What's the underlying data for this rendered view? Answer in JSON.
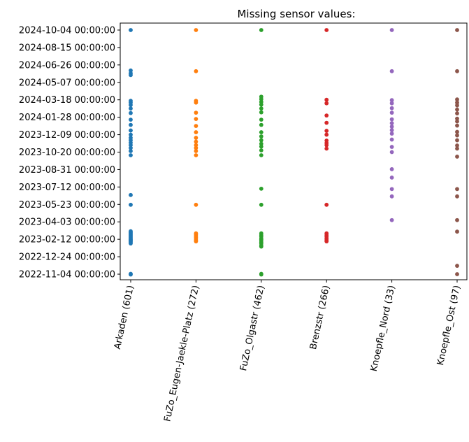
{
  "chart_data": {
    "type": "scatter",
    "title": "Missing sensor values:",
    "xlabel": "",
    "ylabel": "",
    "grid": false,
    "legend": "none",
    "categories": [
      "Arkaden (601)",
      "FuZo_Eugen-Jaekle-Platz (272)",
      "FuZo_Olgastr (462)",
      "Brenzstr (266)",
      "Knoepfle_Nord (33)",
      "Knoepfle_Ost (97)"
    ],
    "y_ticks": [
      "2022-11-04 00:00:00",
      "2022-12-24 00:00:00",
      "2023-02-12 00:00:00",
      "2023-04-03 00:00:00",
      "2023-05-23 00:00:00",
      "2023-07-12 00:00:00",
      "2023-08-31 00:00:00",
      "2023-10-20 00:00:00",
      "2023-12-09 00:00:00",
      "2024-01-28 00:00:00",
      "2024-03-18 00:00:00",
      "2024-05-07 00:00:00",
      "2024-06-26 00:00:00",
      "2024-08-15 00:00:00",
      "2024-10-04 00:00:00"
    ],
    "ylim": [
      "2022-10-19",
      "2024-10-24"
    ],
    "series": [
      {
        "color": "#1f77b4",
        "values": [
          "2022-11-03",
          "2022-11-05",
          "2023-01-31",
          "2023-02-03",
          "2023-02-06",
          "2023-02-08",
          "2023-02-10",
          "2023-02-12",
          "2023-02-14",
          "2023-02-17",
          "2023-02-20",
          "2023-02-23",
          "2023-02-26",
          "2023-03-01",
          "2023-03-04",
          "2023-03-07",
          "2023-05-22",
          "2023-06-19",
          "2023-10-11",
          "2023-10-23",
          "2023-11-01",
          "2023-11-09",
          "2023-11-16",
          "2023-11-23",
          "2023-11-30",
          "2023-12-09",
          "2023-12-21",
          "2024-01-06",
          "2024-01-21",
          "2024-02-09",
          "2024-02-22",
          "2024-03-03",
          "2024-03-10",
          "2024-03-15",
          "2024-05-28",
          "2024-06-02",
          "2024-06-10",
          "2024-10-04"
        ]
      },
      {
        "color": "#ff7f0e",
        "values": [
          "2023-02-06",
          "2023-02-09",
          "2023-02-13",
          "2023-02-18",
          "2023-02-22",
          "2023-02-26",
          "2023-03-01",
          "2023-05-22",
          "2023-10-11",
          "2023-10-23",
          "2023-11-01",
          "2023-11-09",
          "2023-11-19",
          "2023-11-30",
          "2023-12-16",
          "2024-01-03",
          "2024-01-23",
          "2024-02-10",
          "2024-03-10",
          "2024-03-15",
          "2024-06-08",
          "2024-10-04"
        ]
      },
      {
        "color": "#2ca02c",
        "values": [
          "2022-11-03",
          "2022-11-05",
          "2023-01-22",
          "2023-01-26",
          "2023-01-31",
          "2023-02-03",
          "2023-02-07",
          "2023-02-11",
          "2023-02-15",
          "2023-02-20",
          "2023-02-24",
          "2023-03-01",
          "2023-05-22",
          "2023-07-07",
          "2023-10-11",
          "2023-10-25",
          "2023-11-05",
          "2023-11-13",
          "2023-11-23",
          "2023-12-04",
          "2023-12-16",
          "2024-01-06",
          "2024-01-21",
          "2024-02-11",
          "2024-02-22",
          "2024-03-04",
          "2024-03-12",
          "2024-03-20",
          "2024-03-27",
          "2024-10-04"
        ]
      },
      {
        "color": "#d62728",
        "values": [
          "2023-02-06",
          "2023-02-10",
          "2023-02-14",
          "2023-02-19",
          "2023-02-24",
          "2023-03-01",
          "2023-05-22",
          "2023-10-30",
          "2023-11-09",
          "2023-11-15",
          "2023-11-22",
          "2023-12-09",
          "2023-12-20",
          "2024-01-12",
          "2024-02-02",
          "2024-03-08",
          "2024-03-18",
          "2024-10-04"
        ]
      },
      {
        "color": "#9467bd",
        "values": [
          "2023-04-08",
          "2023-06-15",
          "2023-07-06",
          "2023-08-08",
          "2023-09-01",
          "2023-10-20",
          "2023-11-04",
          "2023-11-25",
          "2023-12-12",
          "2023-12-22",
          "2024-01-01",
          "2024-01-11",
          "2024-01-22",
          "2024-02-10",
          "2024-02-23",
          "2024-03-08",
          "2024-03-17",
          "2024-06-08",
          "2024-10-04"
        ]
      },
      {
        "color": "#8c564b",
        "values": [
          "2022-11-04",
          "2022-11-28",
          "2023-03-06",
          "2023-04-08",
          "2023-06-15",
          "2023-07-06",
          "2023-10-07",
          "2023-10-30",
          "2023-11-08",
          "2023-11-23",
          "2023-12-07",
          "2023-12-17",
          "2024-01-04",
          "2024-01-16",
          "2024-01-24",
          "2024-02-08",
          "2024-02-19",
          "2024-03-02",
          "2024-03-10",
          "2024-03-19",
          "2024-06-08",
          "2024-10-04"
        ]
      }
    ]
  }
}
